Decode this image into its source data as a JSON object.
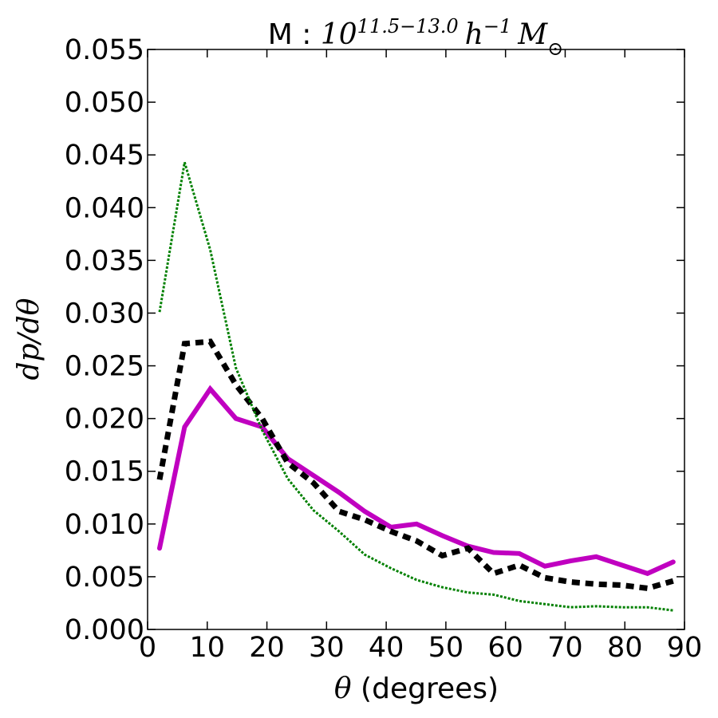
{
  "chart_data": {
    "type": "line",
    "title": "M : 10^{11.5−13.0} h^{−1} M_⊙",
    "title_parts": {
      "prefix": "M : ",
      "base": "10",
      "exponent": "11.5−13.0",
      "h": "h",
      "h_exp": "−1",
      "M": "M",
      "M_sub": "⊙"
    },
    "xlabel": "θ (degrees)",
    "xlabel_parts": {
      "symbol": "θ",
      "text": " (degrees)"
    },
    "ylabel": "dp/dθ",
    "xlim": [
      0,
      90
    ],
    "ylim": [
      0,
      0.055
    ],
    "xticks": [
      0,
      10,
      20,
      30,
      40,
      50,
      60,
      70,
      80,
      90
    ],
    "yticks": [
      0.0,
      0.005,
      0.01,
      0.015,
      0.02,
      0.025,
      0.03,
      0.035,
      0.04,
      0.045,
      0.05,
      0.055
    ],
    "xtick_labels": [
      "0",
      "10",
      "20",
      "30",
      "40",
      "50",
      "60",
      "70",
      "80",
      "90"
    ],
    "ytick_labels": [
      "0.000",
      "0.005",
      "0.010",
      "0.015",
      "0.020",
      "0.025",
      "0.030",
      "0.035",
      "0.040",
      "0.045",
      "0.050",
      "0.055"
    ],
    "grid": false,
    "x": [
      2,
      6.2,
      10.5,
      14.8,
      19.2,
      23.5,
      27.8,
      32.1,
      36.4,
      40.8,
      45.1,
      49.4,
      53.7,
      58.0,
      62.3,
      66.6,
      70.9,
      75.2,
      79.5,
      83.8,
      88.1
    ],
    "series": [
      {
        "style": "solid",
        "color": "#c000c0",
        "values": [
          0.0077,
          0.0192,
          0.0228,
          0.02,
          0.0192,
          0.0162,
          0.0146,
          0.013,
          0.0112,
          0.0097,
          0.01,
          0.0089,
          0.0079,
          0.0073,
          0.0072,
          0.006,
          0.0065,
          0.0069,
          0.0061,
          0.0053,
          0.0064
        ]
      },
      {
        "style": "dashed",
        "color": "#000000",
        "values": [
          0.0142,
          0.0271,
          0.0273,
          0.0232,
          0.02,
          0.0158,
          0.0139,
          0.0112,
          0.0104,
          0.0093,
          0.0084,
          0.007,
          0.0077,
          0.0053,
          0.0061,
          0.0049,
          0.0045,
          0.0043,
          0.0042,
          0.0039,
          0.0046
        ]
      },
      {
        "style": "dotted",
        "color": "#008000",
        "values": [
          0.0301,
          0.0443,
          0.036,
          0.0248,
          0.0189,
          0.0143,
          0.0113,
          0.0093,
          0.0071,
          0.0058,
          0.0047,
          0.004,
          0.0035,
          0.0033,
          0.0027,
          0.0024,
          0.0021,
          0.0022,
          0.0021,
          0.0021,
          0.0018
        ]
      }
    ]
  }
}
